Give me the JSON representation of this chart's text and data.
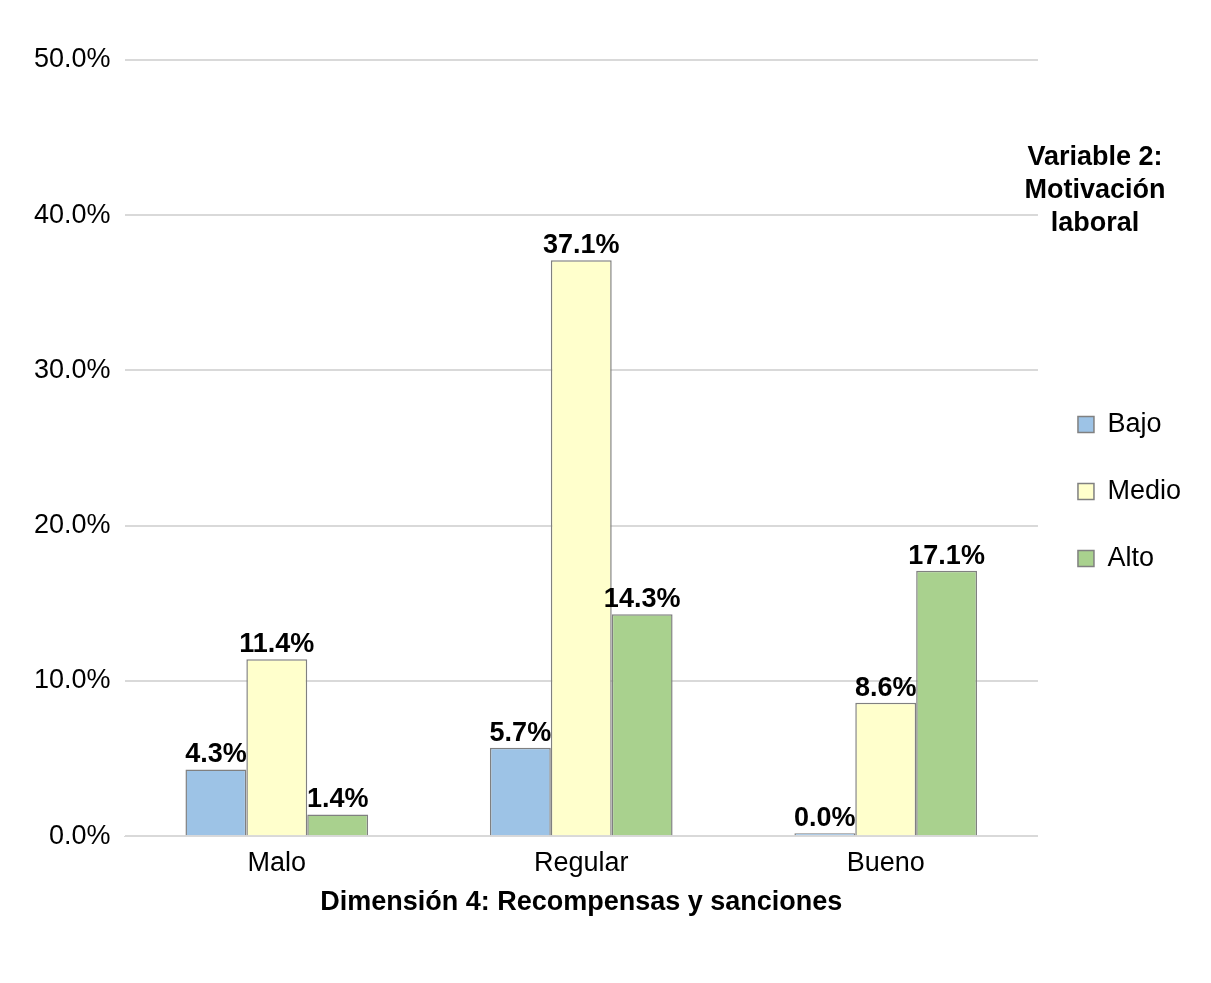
{
  "chart_data": {
    "type": "bar",
    "xlabel": "Dimensión 4: Recompensas y sanciones",
    "legend_title": "Variable 2: Motivación laboral",
    "categories": [
      "Malo",
      "Regular",
      "Bueno"
    ],
    "series": [
      {
        "name": "Bajo",
        "color": "#9dc3e6",
        "values": [
          4.3,
          5.7,
          0.0
        ],
        "value_labels": [
          "4.3%",
          "5.7%",
          "0.0%"
        ]
      },
      {
        "name": "Medio",
        "color": "#ffffcc",
        "values": [
          11.4,
          37.1,
          8.6
        ],
        "value_labels": [
          "11.4%",
          "37.1%",
          "8.6%"
        ]
      },
      {
        "name": "Alto",
        "color": "#a9d18e",
        "values": [
          1.4,
          14.3,
          17.1
        ],
        "value_labels": [
          "1.4%",
          "14.3%",
          "17.1%"
        ]
      }
    ],
    "ylim": [
      0,
      50
    ],
    "yticks": [
      {
        "value": 0,
        "label": "0.0%"
      },
      {
        "value": 10,
        "label": "10.0%"
      },
      {
        "value": 20,
        "label": "20.0%"
      },
      {
        "value": 30,
        "label": "30.0%"
      },
      {
        "value": 40,
        "label": "40.0%"
      },
      {
        "value": 50,
        "label": "50.0%"
      }
    ],
    "grid": "y",
    "legend": "right"
  }
}
